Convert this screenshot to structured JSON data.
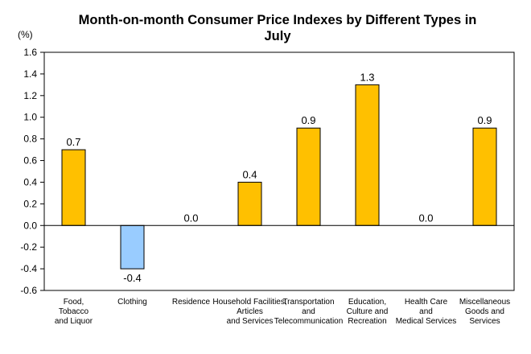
{
  "chart_data": {
    "type": "bar",
    "title_lines": [
      "Month-on-month Consumer Price Indexes by Different Types in",
      "July"
    ],
    "ylabel": "(%)",
    "xlabel": "",
    "ylim": [
      -0.6,
      1.6
    ],
    "yticks": [
      "1.6",
      "1.4",
      "1.2",
      "1.0",
      "0.8",
      "0.6",
      "0.4",
      "0.2",
      "0.0",
      "-0.2",
      "-0.4",
      "-0.6"
    ],
    "categories": [
      [
        "Food,",
        "Tobacco",
        "and Liquor"
      ],
      [
        "Clothing"
      ],
      [
        "Residence"
      ],
      [
        "Household Facilities,",
        "Articles",
        "and Services"
      ],
      [
        "Transportation",
        "and",
        "Telecommunication"
      ],
      [
        "Education,",
        "Culture and",
        "Recreation"
      ],
      [
        "Health Care",
        "and",
        "Medical Services"
      ],
      [
        "Miscellaneous",
        "Goods and",
        "Services"
      ]
    ],
    "values": [
      0.7,
      -0.4,
      0.0,
      0.4,
      0.9,
      1.3,
      0.0,
      0.9
    ],
    "value_labels": [
      "0.7",
      "-0.4",
      "0.0",
      "0.4",
      "0.9",
      "1.3",
      "0.0",
      "0.9"
    ],
    "grid": false,
    "legend": "none",
    "colors": {
      "positive": "#FFC000",
      "negative": "#99CCFF",
      "outline": "#000000"
    }
  }
}
